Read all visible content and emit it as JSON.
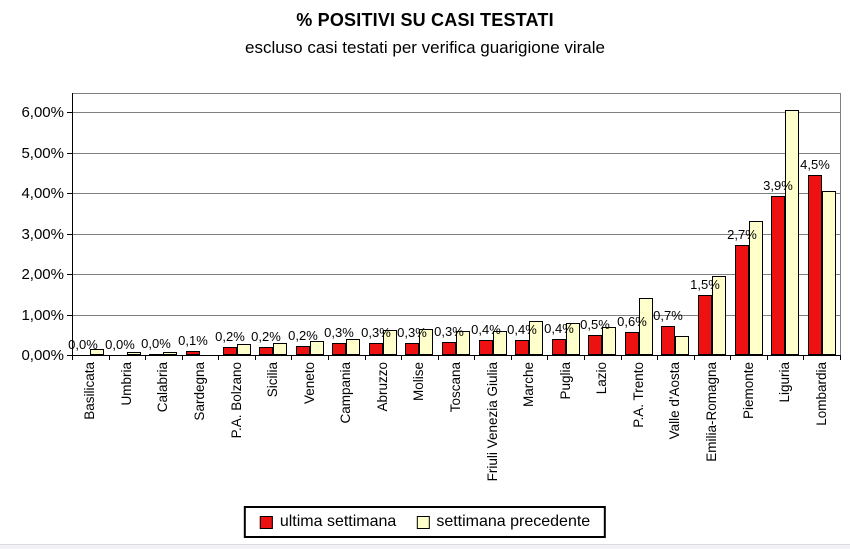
{
  "title": "% POSITIVI SU CASI TESTATI",
  "subtitle": "escluso casi testati per verifica guarigione virale",
  "chart_data": {
    "type": "bar",
    "title": "% POSITIVI SU CASI TESTATI",
    "subtitle": "escluso casi testati per verifica guarigione virale",
    "categories": [
      "Basilicata",
      "Umbria",
      "Calabria",
      "Sardegna",
      "P.A. Bolzano",
      "Sicilia",
      "Veneto",
      "Campania",
      "Abruzzo",
      "Molise",
      "Toscana",
      "Friuli Venezia Giulia",
      "Marche",
      "Puglia",
      "Lazio",
      "P.A. Trento",
      "Valle d'Aosta",
      "Emilia-Romagna",
      "Piemonte",
      "Liguria",
      "Lombardia"
    ],
    "series": [
      {
        "name": "ultima settimana",
        "color": "#ee1111",
        "values": [
          0.0,
          0.0,
          0.03,
          0.1,
          0.2,
          0.2,
          0.23,
          0.3,
          0.3,
          0.3,
          0.32,
          0.37,
          0.37,
          0.4,
          0.5,
          0.57,
          0.72,
          1.47,
          2.72,
          3.93,
          4.45
        ],
        "labels": [
          "0,0%",
          "0,0%",
          "0,0%",
          "0,1%",
          "0,2%",
          "0,2%",
          "0,2%",
          "0,3%",
          "0,3%",
          "0,3%",
          "0,3%",
          "0,4%",
          "0,4%",
          "0,4%",
          "0,5%",
          "0,6%",
          "0,7%",
          "1,5%",
          "2,7%",
          "3,9%",
          "4,5%"
        ]
      },
      {
        "name": "settimana precedente",
        "color": "#ffffcc",
        "values": [
          0.15,
          0.08,
          0.08,
          0.0,
          0.28,
          0.3,
          0.35,
          0.4,
          0.62,
          0.65,
          0.6,
          0.6,
          0.85,
          0.8,
          0.7,
          1.4,
          0.47,
          1.95,
          3.3,
          6.05,
          4.05
        ]
      }
    ],
    "xlabel": "",
    "ylabel": "",
    "y_ticks": [
      "0,00%",
      "1,00%",
      "2,00%",
      "3,00%",
      "4,00%",
      "5,00%",
      "6,00%"
    ],
    "y_tick_values": [
      0,
      1,
      2,
      3,
      4,
      5,
      6
    ],
    "ylim": [
      0,
      6.47
    ],
    "grid": true,
    "gridline_color": "#808080",
    "axis_color": "#000000",
    "legend_position": "bottom"
  }
}
